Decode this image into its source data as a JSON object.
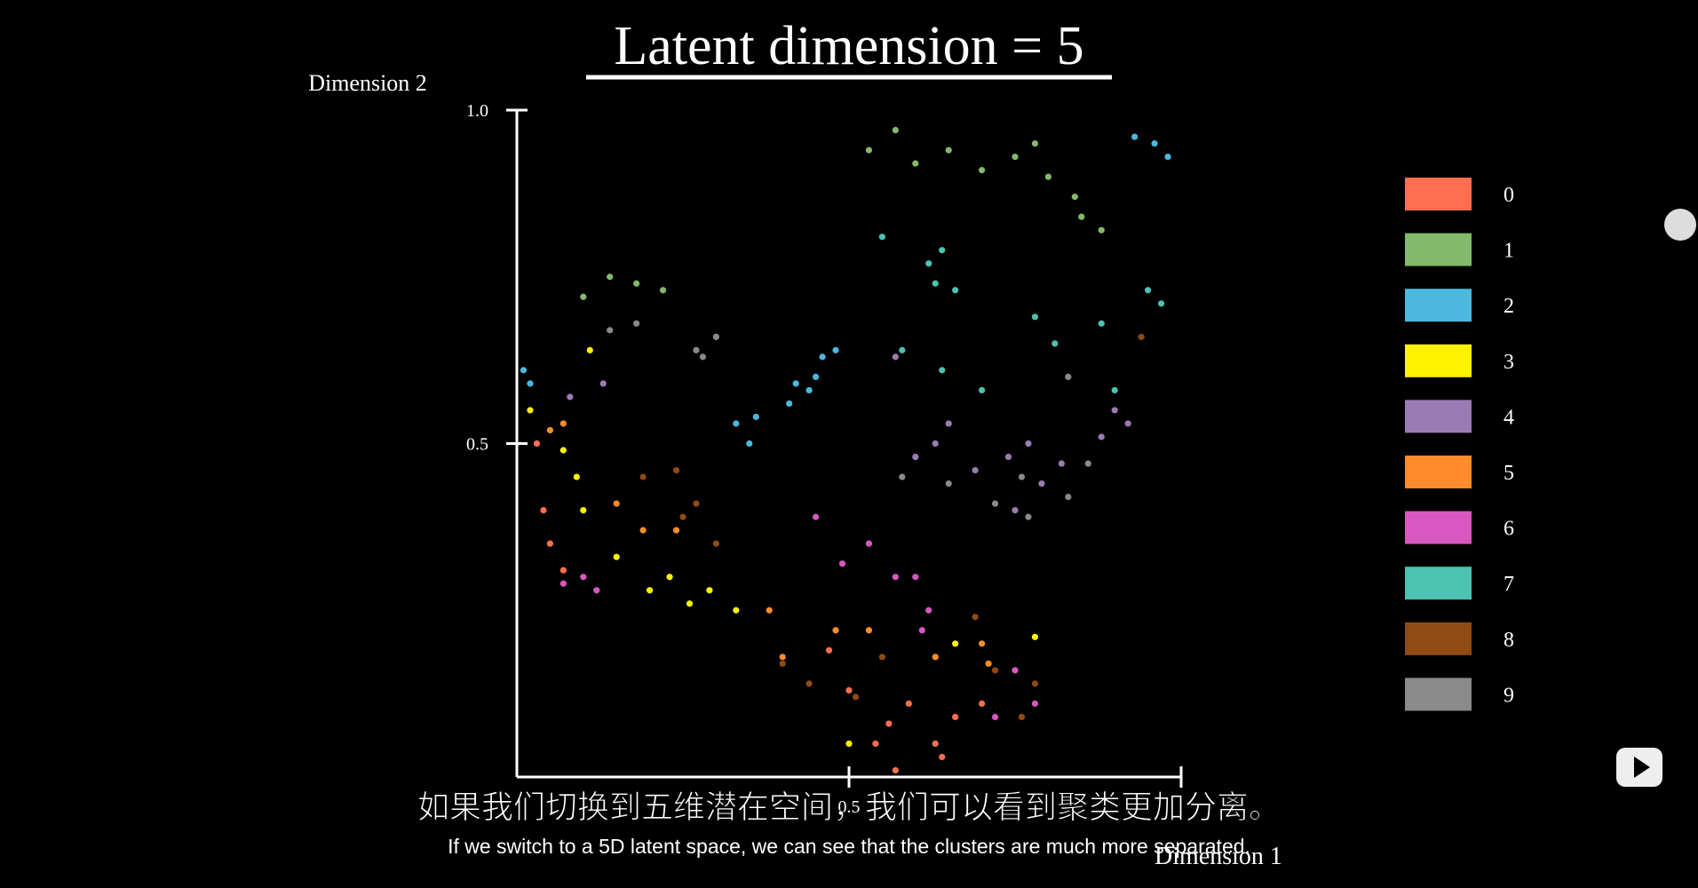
{
  "chart_data": {
    "type": "scatter",
    "title": "Latent dimension = 5",
    "x_label": "Dimension 1",
    "y_label": "Dimension 2",
    "xlim": [
      0,
      1
    ],
    "ylim": [
      0,
      1
    ],
    "xticks": [
      0.5
    ],
    "yticks": [
      0.5,
      {
        "value": 1,
        "label": "1.0"
      }
    ],
    "legend": "right",
    "series": [
      {
        "name": "0",
        "color": "#ff6f4f",
        "x": [
          0.03,
          0.04,
          0.05,
          0.07,
          0.54,
          0.56,
          0.59,
          0.63,
          0.66,
          0.7,
          0.57,
          0.47,
          0.5,
          0.64
        ],
        "values": [
          0.5,
          0.4,
          0.35,
          0.31,
          0.05,
          0.08,
          0.11,
          0.05,
          0.09,
          0.11,
          0.01,
          0.19,
          0.13,
          0.03
        ]
      },
      {
        "name": "1",
        "color": "#82b96a",
        "x": [
          0.53,
          0.57,
          0.6,
          0.65,
          0.7,
          0.75,
          0.78,
          0.8,
          0.84,
          0.88,
          0.1,
          0.14,
          0.18,
          0.22,
          0.85
        ],
        "values": [
          0.94,
          0.97,
          0.92,
          0.94,
          0.91,
          0.93,
          0.95,
          0.9,
          0.87,
          0.82,
          0.72,
          0.75,
          0.74,
          0.73,
          0.84
        ]
      },
      {
        "name": "2",
        "color": "#4cb8de",
        "x": [
          0.01,
          0.02,
          0.93,
          0.96,
          0.98,
          0.33,
          0.35,
          0.36,
          0.41,
          0.44,
          0.46,
          0.48,
          0.45,
          0.42
        ],
        "values": [
          0.61,
          0.59,
          0.96,
          0.95,
          0.93,
          0.53,
          0.5,
          0.54,
          0.56,
          0.58,
          0.63,
          0.64,
          0.6,
          0.59
        ]
      },
      {
        "name": "3",
        "color": "#fff200",
        "x": [
          0.02,
          0.07,
          0.09,
          0.1,
          0.15,
          0.2,
          0.23,
          0.26,
          0.29,
          0.33,
          0.11,
          0.5,
          0.66,
          0.78
        ],
        "values": [
          0.55,
          0.49,
          0.45,
          0.4,
          0.33,
          0.28,
          0.3,
          0.26,
          0.28,
          0.25,
          0.64,
          0.05,
          0.2,
          0.21
        ]
      },
      {
        "name": "4",
        "color": "#9b7bb4",
        "x": [
          0.08,
          0.13,
          0.6,
          0.63,
          0.65,
          0.69,
          0.74,
          0.77,
          0.79,
          0.82,
          0.75,
          0.57,
          0.9,
          0.92,
          0.88
        ],
        "values": [
          0.57,
          0.59,
          0.48,
          0.5,
          0.53,
          0.46,
          0.48,
          0.5,
          0.44,
          0.47,
          0.4,
          0.63,
          0.55,
          0.53,
          0.51
        ]
      },
      {
        "name": "5",
        "color": "#ff8c2a",
        "x": [
          0.05,
          0.07,
          0.15,
          0.19,
          0.24,
          0.38,
          0.4,
          0.48,
          0.53,
          0.7,
          0.71,
          0.63
        ],
        "values": [
          0.52,
          0.53,
          0.41,
          0.37,
          0.37,
          0.25,
          0.18,
          0.22,
          0.22,
          0.2,
          0.17,
          0.18
        ]
      },
      {
        "name": "6",
        "color": "#d957c0",
        "x": [
          0.07,
          0.1,
          0.12,
          0.45,
          0.49,
          0.53,
          0.57,
          0.6,
          0.61,
          0.75,
          0.78,
          0.72,
          0.62
        ],
        "values": [
          0.29,
          0.3,
          0.28,
          0.39,
          0.32,
          0.35,
          0.3,
          0.3,
          0.22,
          0.16,
          0.11,
          0.09,
          0.25
        ]
      },
      {
        "name": "7",
        "color": "#4cc2b2",
        "x": [
          0.62,
          0.64,
          0.66,
          0.63,
          0.58,
          0.64,
          0.78,
          0.81,
          0.88,
          0.9,
          0.95,
          0.97,
          0.7,
          0.55
        ],
        "values": [
          0.77,
          0.79,
          0.73,
          0.74,
          0.64,
          0.61,
          0.69,
          0.65,
          0.68,
          0.58,
          0.73,
          0.71,
          0.58,
          0.81
        ]
      },
      {
        "name": "8",
        "color": "#904a12",
        "x": [
          0.19,
          0.24,
          0.25,
          0.27,
          0.3,
          0.4,
          0.44,
          0.51,
          0.55,
          0.69,
          0.72,
          0.78,
          0.76,
          0.94
        ],
        "values": [
          0.45,
          0.46,
          0.39,
          0.41,
          0.35,
          0.17,
          0.14,
          0.12,
          0.18,
          0.24,
          0.16,
          0.14,
          0.09,
          0.66
        ]
      },
      {
        "name": "9",
        "color": "#8a8a8a",
        "x": [
          0.27,
          0.28,
          0.3,
          0.18,
          0.14,
          0.58,
          0.65,
          0.76,
          0.83,
          0.86,
          0.77,
          0.72,
          0.83
        ],
        "values": [
          0.64,
          0.63,
          0.66,
          0.68,
          0.67,
          0.45,
          0.44,
          0.45,
          0.42,
          0.47,
          0.39,
          0.41,
          0.6
        ]
      }
    ]
  },
  "subtitles": {
    "zh": "如果我们切换到五维潜在空间，我们可以看到聚类更加分离。",
    "en": "If we switch to a 5D latent space, we can see that the clusters are much more separated."
  }
}
